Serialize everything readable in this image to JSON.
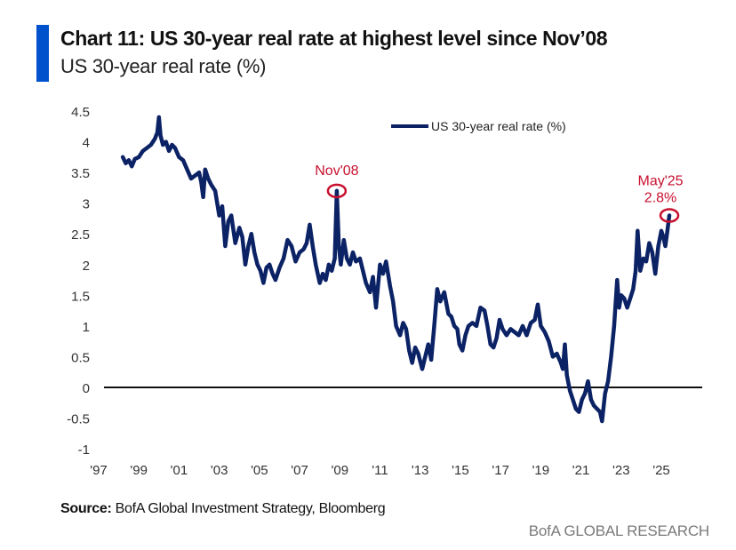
{
  "header": {
    "title": "Chart 11: US 30-year real rate at highest level since Nov’08",
    "subtitle": "US 30-year real rate (%)",
    "accent_color": "#0052CC"
  },
  "footer": {
    "source_label": "Source:",
    "source_text": " BofA Global Investment Strategy, Bloomberg",
    "brand": "BofA GLOBAL RESEARCH"
  },
  "chart_data": {
    "type": "line",
    "title": "Chart 11: US 30-year real rate at highest level since Nov’08",
    "subtitle": "US 30-year real rate (%)",
    "xlabel": "",
    "ylabel": "",
    "xlim": [
      1997,
      2027.05
    ],
    "ylim": [
      -1,
      4.5
    ],
    "x_ticks": [
      1997,
      1999,
      2001,
      2003,
      2005,
      2007,
      2009,
      2011,
      2013,
      2015,
      2017,
      2019,
      2021,
      2023,
      2025
    ],
    "x_tick_labels": [
      "'97",
      "'99",
      "'01",
      "'03",
      "'05",
      "'07",
      "'09",
      "'11",
      "'13",
      "'15",
      "'17",
      "'19",
      "'21",
      "'23",
      "'25"
    ],
    "y_ticks": [
      -1,
      -0.5,
      0,
      0.5,
      1,
      1.5,
      2,
      2.5,
      3,
      3.5,
      4,
      4.5
    ],
    "y_tick_labels": [
      "-1",
      "-0.5",
      "0",
      "0.5",
      "1",
      "1.5",
      "2",
      "2.5",
      "3",
      "3.5",
      "4",
      "4.5"
    ],
    "grid": false,
    "zero_line": true,
    "legend": {
      "position": "top-right",
      "entries": [
        "US 30-year real rate (%)"
      ]
    },
    "series": [
      {
        "name": "US 30-year real rate (%)",
        "color": "#0B2265",
        "x": [
          1998.2,
          1998.35,
          1998.5,
          1998.65,
          1998.8,
          1999.0,
          1999.2,
          1999.4,
          1999.6,
          1999.8,
          1999.92,
          2000.0,
          2000.08,
          2000.2,
          2000.35,
          2000.5,
          2000.65,
          2000.8,
          2001.0,
          2001.2,
          2001.4,
          2001.6,
          2001.8,
          2002.0,
          2002.1,
          2002.2,
          2002.3,
          2002.45,
          2002.6,
          2002.8,
          2003.0,
          2003.15,
          2003.3,
          2003.45,
          2003.6,
          2003.8,
          2004.0,
          2004.15,
          2004.3,
          2004.45,
          2004.6,
          2004.75,
          2004.9,
          2005.05,
          2005.2,
          2005.35,
          2005.5,
          2005.65,
          2005.8,
          2006.0,
          2006.2,
          2006.4,
          2006.6,
          2006.8,
          2007.0,
          2007.2,
          2007.35,
          2007.5,
          2007.65,
          2007.8,
          2008.0,
          2008.15,
          2008.3,
          2008.45,
          2008.6,
          2008.75,
          2008.85,
          2008.95,
          2009.05,
          2009.2,
          2009.35,
          2009.5,
          2009.65,
          2009.8,
          2010.0,
          2010.15,
          2010.3,
          2010.5,
          2010.65,
          2010.8,
          2011.0,
          2011.15,
          2011.3,
          2011.5,
          2011.65,
          2011.8,
          2012.0,
          2012.15,
          2012.3,
          2012.45,
          2012.6,
          2012.75,
          2012.9,
          2013.1,
          2013.25,
          2013.4,
          2013.55,
          2013.7,
          2013.85,
          2014.0,
          2014.2,
          2014.4,
          2014.55,
          2014.7,
          2014.85,
          2014.95,
          2015.1,
          2015.25,
          2015.4,
          2015.6,
          2015.8,
          2016.0,
          2016.2,
          2016.35,
          2016.5,
          2016.65,
          2016.8,
          2016.95,
          2017.1,
          2017.3,
          2017.5,
          2017.7,
          2017.9,
          2018.1,
          2018.3,
          2018.5,
          2018.7,
          2018.85,
          2019.0,
          2019.2,
          2019.4,
          2019.6,
          2019.8,
          2020.0,
          2020.1,
          2020.2,
          2020.3,
          2020.45,
          2020.6,
          2020.75,
          2020.9,
          2021.05,
          2021.2,
          2021.35,
          2021.5,
          2021.65,
          2021.8,
          2021.95,
          2022.05,
          2022.2,
          2022.35,
          2022.5,
          2022.65,
          2022.8,
          2022.9,
          2023.0,
          2023.15,
          2023.3,
          2023.45,
          2023.6,
          2023.72,
          2023.82,
          2023.95,
          2024.1,
          2024.25,
          2024.4,
          2024.55,
          2024.7,
          2024.85,
          2025.0,
          2025.1,
          2025.2,
          2025.3,
          2025.4
        ],
        "y": [
          3.75,
          3.65,
          3.7,
          3.6,
          3.72,
          3.75,
          3.85,
          3.9,
          3.95,
          4.05,
          4.15,
          4.4,
          4.1,
          3.95,
          4.0,
          3.85,
          3.95,
          3.9,
          3.75,
          3.7,
          3.55,
          3.4,
          3.45,
          3.5,
          3.35,
          3.1,
          3.55,
          3.4,
          3.3,
          3.2,
          2.8,
          2.95,
          2.3,
          2.7,
          2.8,
          2.35,
          2.6,
          2.45,
          2.0,
          2.3,
          2.5,
          2.2,
          2.0,
          1.9,
          1.7,
          1.95,
          2.0,
          1.85,
          1.75,
          1.95,
          2.1,
          2.4,
          2.3,
          2.05,
          2.2,
          2.25,
          2.35,
          2.65,
          2.3,
          2.0,
          1.7,
          1.85,
          1.75,
          2.0,
          1.9,
          2.1,
          3.2,
          2.3,
          2.0,
          2.4,
          2.1,
          2.0,
          2.2,
          2.05,
          2.1,
          1.9,
          1.7,
          1.55,
          1.8,
          1.3,
          2.0,
          1.85,
          2.05,
          1.65,
          1.4,
          1.0,
          0.85,
          1.05,
          0.95,
          0.6,
          0.4,
          0.65,
          0.55,
          0.3,
          0.5,
          0.7,
          0.45,
          1.0,
          1.6,
          1.4,
          1.55,
          1.2,
          1.15,
          1.0,
          0.95,
          0.7,
          0.6,
          0.85,
          1.0,
          1.05,
          1.0,
          1.3,
          1.25,
          1.0,
          0.7,
          0.65,
          0.8,
          1.1,
          0.95,
          0.85,
          0.95,
          0.9,
          0.85,
          1.0,
          0.85,
          1.05,
          1.1,
          1.35,
          1.0,
          0.9,
          0.75,
          0.5,
          0.55,
          0.4,
          0.3,
          0.7,
          0.2,
          -0.05,
          -0.2,
          -0.35,
          -0.4,
          -0.2,
          -0.1,
          0.1,
          -0.2,
          -0.3,
          -0.35,
          -0.4,
          -0.55,
          -0.1,
          0.1,
          0.5,
          1.0,
          1.75,
          1.3,
          1.5,
          1.45,
          1.3,
          1.45,
          1.6,
          1.9,
          2.55,
          1.9,
          2.1,
          2.05,
          2.35,
          2.2,
          1.85,
          2.3,
          2.55,
          2.45,
          2.3,
          2.55,
          2.8
        ]
      }
    ],
    "annotations": [
      {
        "label": "Nov'08",
        "x": 2008.85,
        "y": 3.2,
        "color": "#C8102E"
      },
      {
        "label": "May'25",
        "sublabel": "2.8%",
        "x": 2025.4,
        "y": 2.8,
        "color": "#C8102E"
      }
    ]
  }
}
